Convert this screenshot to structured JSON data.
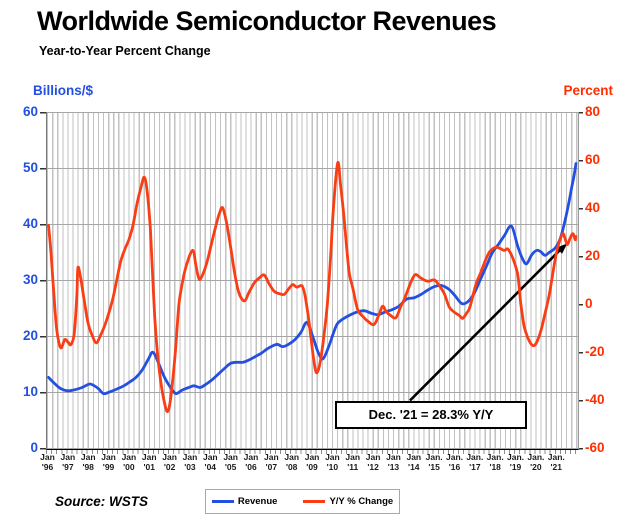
{
  "title": "Worldwide Semiconductor Revenues",
  "subtitle": "Year-to-Year Percent Change",
  "source": "Source: WSTS",
  "annotation": {
    "text": "Dec. '21 = 28.3% Y/Y"
  },
  "legend": [
    {
      "label": "Revenue",
      "color": "#2350E0"
    },
    {
      "label": "Y/Y % Change",
      "color": "#F93D14"
    }
  ],
  "chart_data": {
    "type": "line",
    "title": "Worldwide Semiconductor Revenues",
    "subtitle": "Year-to-Year Percent Change",
    "grid": "on",
    "legend_position": "bottom",
    "x_range": [
      1996.0,
      2021.92
    ],
    "left_axis": {
      "label": "Billions/$",
      "color": "#2350E0",
      "range": [
        0,
        60
      ],
      "ticks": [
        60,
        50,
        40,
        30,
        20,
        10,
        0
      ]
    },
    "right_axis": {
      "label": "Percent",
      "color": "#FF2E00",
      "range": [
        -60,
        80
      ],
      "ticks": [
        80,
        60,
        40,
        20,
        0,
        -20,
        -40,
        -60
      ]
    },
    "x_ticks": [
      {
        "m": "Jan",
        "y": "'96"
      },
      {
        "m": "Jan",
        "y": "'97"
      },
      {
        "m": "Jan",
        "y": "'98"
      },
      {
        "m": "Jan",
        "y": "'99"
      },
      {
        "m": "Jan",
        "y": "'00"
      },
      {
        "m": "Jan",
        "y": "'01"
      },
      {
        "m": "Jan",
        "y": "'02"
      },
      {
        "m": "Jan",
        "y": "'03"
      },
      {
        "m": "Jan",
        "y": "'04"
      },
      {
        "m": "Jan",
        "y": "'05"
      },
      {
        "m": "Jan",
        "y": "'06"
      },
      {
        "m": "Jan",
        "y": "'07"
      },
      {
        "m": "Jan",
        "y": "'08"
      },
      {
        "m": "Jan",
        "y": "'09"
      },
      {
        "m": "Jan",
        "y": "'10"
      },
      {
        "m": "Jan",
        "y": "'11"
      },
      {
        "m": "Jan",
        "y": "'12"
      },
      {
        "m": "Jan",
        "y": "'13"
      },
      {
        "m": "Jan",
        "y": "'14"
      },
      {
        "m": "Jan.",
        "y": "'15"
      },
      {
        "m": "Jan.",
        "y": "'16"
      },
      {
        "m": "Jan.",
        "y": "'17"
      },
      {
        "m": "Jan.",
        "y": "'18"
      },
      {
        "m": "Jan.",
        "y": "'19"
      },
      {
        "m": "Jan.",
        "y": "'20"
      },
      {
        "m": "Jan.",
        "y": "'21"
      }
    ],
    "annotation": {
      "text": "Dec. '21 = 28.3% Y/Y",
      "target_point": [
        2021.92,
        28.3
      ]
    },
    "series": [
      {
        "name": "Revenue",
        "axis": "left",
        "color": "#2350E0",
        "units": "billions USD per month",
        "points": [
          [
            1996.0,
            12.7
          ],
          [
            1996.3,
            11.6
          ],
          [
            1996.6,
            10.7
          ],
          [
            1996.95,
            10.3
          ],
          [
            1997.3,
            10.5
          ],
          [
            1997.65,
            10.9
          ],
          [
            1998.0,
            11.5
          ],
          [
            1998.2,
            11.3
          ],
          [
            1998.45,
            10.7
          ],
          [
            1998.71,
            9.8
          ],
          [
            1999.0,
            10.1
          ],
          [
            1999.35,
            10.6
          ],
          [
            1999.7,
            11.2
          ],
          [
            2000.0,
            11.9
          ],
          [
            2000.3,
            12.7
          ],
          [
            2000.6,
            14.0
          ],
          [
            2000.9,
            15.9
          ],
          [
            2001.13,
            17.2
          ],
          [
            2001.4,
            15.3
          ],
          [
            2001.7,
            12.7
          ],
          [
            2002.0,
            10.9
          ],
          [
            2002.26,
            9.8
          ],
          [
            2002.55,
            10.4
          ],
          [
            2002.9,
            10.9
          ],
          [
            2003.15,
            11.2
          ],
          [
            2003.45,
            10.9
          ],
          [
            2003.75,
            11.5
          ],
          [
            2004.05,
            12.3
          ],
          [
            2004.35,
            13.3
          ],
          [
            2004.65,
            14.3
          ],
          [
            2004.95,
            15.2
          ],
          [
            2005.25,
            15.4
          ],
          [
            2005.55,
            15.4
          ],
          [
            2005.85,
            15.8
          ],
          [
            2006.15,
            16.4
          ],
          [
            2006.45,
            17.0
          ],
          [
            2006.75,
            17.8
          ],
          [
            2007.0,
            18.3
          ],
          [
            2007.25,
            18.6
          ],
          [
            2007.5,
            18.2
          ],
          [
            2007.8,
            18.6
          ],
          [
            2008.1,
            19.4
          ],
          [
            2008.4,
            20.7
          ],
          [
            2008.7,
            22.5
          ],
          [
            2009.0,
            19.8
          ],
          [
            2009.25,
            17.2
          ],
          [
            2009.48,
            16.0
          ],
          [
            2009.75,
            18.0
          ],
          [
            2010.0,
            20.6
          ],
          [
            2010.2,
            22.3
          ],
          [
            2010.5,
            23.2
          ],
          [
            2010.8,
            23.8
          ],
          [
            2011.1,
            24.3
          ],
          [
            2011.5,
            24.6
          ],
          [
            2011.9,
            24.1
          ],
          [
            2012.2,
            23.9
          ],
          [
            2012.55,
            24.4
          ],
          [
            2012.9,
            24.8
          ],
          [
            2013.25,
            25.5
          ],
          [
            2013.6,
            26.7
          ],
          [
            2013.95,
            26.9
          ],
          [
            2014.3,
            27.5
          ],
          [
            2014.6,
            28.2
          ],
          [
            2014.95,
            28.9
          ],
          [
            2015.3,
            29.1
          ],
          [
            2015.65,
            28.5
          ],
          [
            2015.95,
            27.4
          ],
          [
            2016.3,
            25.9
          ],
          [
            2016.6,
            26.2
          ],
          [
            2016.9,
            27.6
          ],
          [
            2017.2,
            30.0
          ],
          [
            2017.5,
            32.4
          ],
          [
            2017.8,
            34.9
          ],
          [
            2018.1,
            36.4
          ],
          [
            2018.4,
            38.0
          ],
          [
            2018.75,
            39.7
          ],
          [
            2019.05,
            36.2
          ],
          [
            2019.3,
            33.8
          ],
          [
            2019.5,
            33.0
          ],
          [
            2019.75,
            34.6
          ],
          [
            2020.0,
            35.4
          ],
          [
            2020.2,
            35.1
          ],
          [
            2020.4,
            34.5
          ],
          [
            2020.6,
            35.0
          ],
          [
            2020.9,
            35.8
          ],
          [
            2021.15,
            37.5
          ],
          [
            2021.35,
            40.2
          ],
          [
            2021.55,
            43.5
          ],
          [
            2021.72,
            46.8
          ],
          [
            2021.84,
            49.0
          ],
          [
            2021.92,
            50.9
          ]
        ]
      },
      {
        "name": "Y/Y % Change",
        "axis": "right",
        "color": "#F93D14",
        "units": "percent",
        "points": [
          [
            1996.0,
            33
          ],
          [
            1996.12,
            22
          ],
          [
            1996.25,
            6
          ],
          [
            1996.4,
            -10
          ],
          [
            1996.6,
            -18
          ],
          [
            1996.8,
            -14.6
          ],
          [
            1996.97,
            -15.8
          ],
          [
            1997.1,
            -16.7
          ],
          [
            1997.25,
            -13
          ],
          [
            1997.33,
            -5
          ],
          [
            1997.4,
            5
          ],
          [
            1997.45,
            15.5
          ],
          [
            1997.6,
            10
          ],
          [
            1997.75,
            2
          ],
          [
            1997.95,
            -8
          ],
          [
            1998.15,
            -13
          ],
          [
            1998.35,
            -16
          ],
          [
            1998.55,
            -13
          ],
          [
            1998.75,
            -9
          ],
          [
            1998.95,
            -4
          ],
          [
            1999.15,
            2
          ],
          [
            1999.35,
            10
          ],
          [
            1999.55,
            18
          ],
          [
            1999.75,
            23
          ],
          [
            1999.95,
            27
          ],
          [
            2000.15,
            33
          ],
          [
            2000.35,
            42
          ],
          [
            2000.55,
            49
          ],
          [
            2000.71,
            53
          ],
          [
            2000.85,
            47
          ],
          [
            2001.0,
            32
          ],
          [
            2001.1,
            15
          ],
          [
            2001.22,
            -5
          ],
          [
            2001.35,
            -20
          ],
          [
            2001.5,
            -31
          ],
          [
            2001.65,
            -39
          ],
          [
            2001.82,
            -44.5
          ],
          [
            2001.95,
            -42
          ],
          [
            2002.1,
            -32
          ],
          [
            2002.25,
            -18
          ],
          [
            2002.41,
            0
          ],
          [
            2002.6,
            10
          ],
          [
            2002.8,
            17
          ],
          [
            2003.09,
            22.6
          ],
          [
            2003.25,
            16
          ],
          [
            2003.41,
            10.5
          ],
          [
            2003.6,
            13
          ],
          [
            2003.8,
            18
          ],
          [
            2004.0,
            25
          ],
          [
            2004.2,
            32
          ],
          [
            2004.4,
            38
          ],
          [
            2004.56,
            40.3
          ],
          [
            2004.75,
            34
          ],
          [
            2004.95,
            24
          ],
          [
            2005.15,
            13
          ],
          [
            2005.35,
            5
          ],
          [
            2005.62,
            1.5
          ],
          [
            2005.85,
            5
          ],
          [
            2006.11,
            9
          ],
          [
            2006.35,
            11
          ],
          [
            2006.6,
            12.3
          ],
          [
            2006.85,
            8.5
          ],
          [
            2007.09,
            5.5
          ],
          [
            2007.35,
            4.5
          ],
          [
            2007.58,
            4.2
          ],
          [
            2007.8,
            6.5
          ],
          [
            2008.0,
            8.3
          ],
          [
            2008.2,
            7.2
          ],
          [
            2008.45,
            7.8
          ],
          [
            2008.6,
            4
          ],
          [
            2008.75,
            -4
          ],
          [
            2008.9,
            -14
          ],
          [
            2009.05,
            -24
          ],
          [
            2009.18,
            -28.5
          ],
          [
            2009.35,
            -24
          ],
          [
            2009.55,
            -12
          ],
          [
            2009.7,
            0
          ],
          [
            2009.85,
            18
          ],
          [
            2010.0,
            40
          ],
          [
            2010.21,
            59
          ],
          [
            2010.35,
            50
          ],
          [
            2010.5,
            38
          ],
          [
            2010.65,
            24
          ],
          [
            2010.78,
            13
          ],
          [
            2010.95,
            7
          ],
          [
            2011.19,
            -2
          ],
          [
            2011.45,
            -5
          ],
          [
            2011.7,
            -7
          ],
          [
            2012.0,
            -8.3
          ],
          [
            2012.25,
            -4
          ],
          [
            2012.42,
            -0.7
          ],
          [
            2012.6,
            -3
          ],
          [
            2012.8,
            -4.5
          ],
          [
            2013.07,
            -5.5
          ],
          [
            2013.3,
            -1
          ],
          [
            2013.48,
            2.1
          ],
          [
            2013.7,
            7
          ],
          [
            2013.9,
            11
          ],
          [
            2014.05,
            12.5
          ],
          [
            2014.3,
            11
          ],
          [
            2014.63,
            9.7
          ],
          [
            2014.96,
            10.2
          ],
          [
            2015.2,
            7.9
          ],
          [
            2015.45,
            4.5
          ],
          [
            2015.69,
            -1
          ],
          [
            2015.94,
            -3.2
          ],
          [
            2016.19,
            -4.6
          ],
          [
            2016.35,
            -5.8
          ],
          [
            2016.52,
            -3.9
          ],
          [
            2016.68,
            -1.8
          ],
          [
            2016.84,
            3.1
          ],
          [
            2017.01,
            8.6
          ],
          [
            2017.25,
            13.5
          ],
          [
            2017.5,
            19
          ],
          [
            2017.66,
            21.8
          ],
          [
            2017.83,
            23.2
          ],
          [
            2017.99,
            23.9
          ],
          [
            2018.23,
            23.2
          ],
          [
            2018.4,
            22.5
          ],
          [
            2018.56,
            23.2
          ],
          [
            2018.72,
            21.1
          ],
          [
            2018.89,
            17.6
          ],
          [
            2019.05,
            12.8
          ],
          [
            2019.13,
            7.2
          ],
          [
            2019.21,
            0.3
          ],
          [
            2019.3,
            -5.3
          ],
          [
            2019.38,
            -9.4
          ],
          [
            2019.54,
            -13.6
          ],
          [
            2019.71,
            -16.4
          ],
          [
            2019.87,
            -17.1
          ],
          [
            2020.03,
            -15
          ],
          [
            2020.2,
            -10.8
          ],
          [
            2020.36,
            -5.3
          ],
          [
            2020.53,
            1
          ],
          [
            2020.65,
            6
          ],
          [
            2020.8,
            14
          ],
          [
            2020.95,
            21
          ],
          [
            2021.1,
            26
          ],
          [
            2021.28,
            29.5
          ],
          [
            2021.4,
            27
          ],
          [
            2021.5,
            25
          ],
          [
            2021.65,
            28
          ],
          [
            2021.78,
            29.5
          ],
          [
            2021.88,
            27
          ],
          [
            2021.92,
            28.3
          ]
        ]
      }
    ]
  }
}
